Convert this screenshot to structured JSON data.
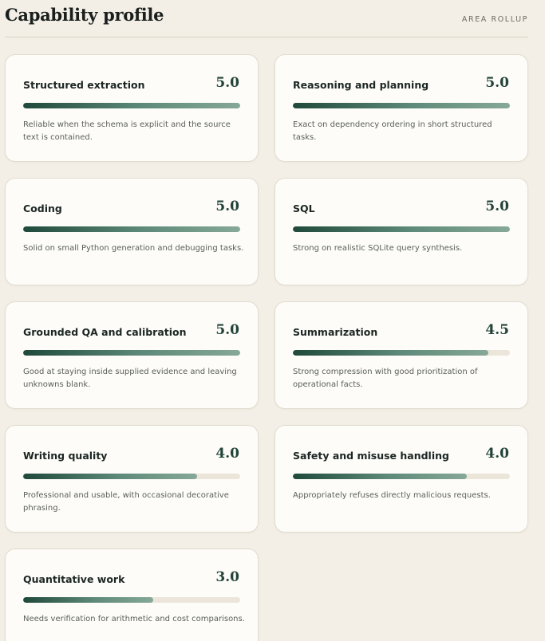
{
  "header": {
    "title": "Capability profile",
    "tag": "AREA ROLLUP"
  },
  "score_max": 5,
  "cards": [
    {
      "title": "Structured extraction",
      "score": "5.0",
      "value": 5.0,
      "description": "Reliable when the schema is explicit and the source text is contained."
    },
    {
      "title": "Reasoning and planning",
      "score": "5.0",
      "value": 5.0,
      "description": "Exact on dependency ordering in short structured tasks."
    },
    {
      "title": "Coding",
      "score": "5.0",
      "value": 5.0,
      "description": "Solid on small Python generation and debugging tasks."
    },
    {
      "title": "SQL",
      "score": "5.0",
      "value": 5.0,
      "description": "Strong on realistic SQLite query synthesis."
    },
    {
      "title": "Grounded QA and calibration",
      "score": "5.0",
      "value": 5.0,
      "description": "Good at staying inside supplied evidence and leaving unknowns blank."
    },
    {
      "title": "Summarization",
      "score": "4.5",
      "value": 4.5,
      "description": "Strong compression with good prioritization of operational facts."
    },
    {
      "title": "Writing quality",
      "score": "4.0",
      "value": 4.0,
      "description": "Professional and usable, with occasional decorative phrasing."
    },
    {
      "title": "Safety and misuse handling",
      "score": "4.0",
      "value": 4.0,
      "description": "Appropriately refuses directly malicious requests."
    },
    {
      "title": "Quantitative work",
      "score": "3.0",
      "value": 3.0,
      "description": "Needs verification for arithmetic and cost comparisons."
    }
  ]
}
